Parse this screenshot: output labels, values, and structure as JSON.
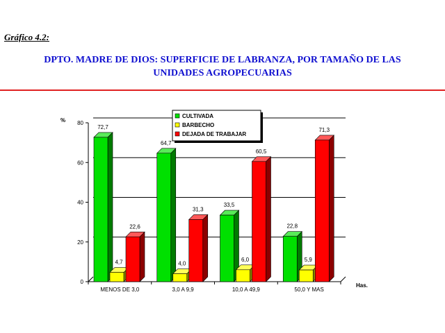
{
  "caption": "Gráfico 4.2:",
  "title_line1": "DPTO. MADRE DE DIOS: SUPERFICIE DE LABRANZA, POR TAMAÑO DE LAS",
  "title_line2": "UNIDADES AGROPECUARIAS",
  "colors": {
    "title": "#1010d0",
    "rule": "#e02020"
  },
  "chart_data": {
    "type": "bar",
    "ylabel": "%",
    "xlabel": "Has.",
    "ylim": [
      0,
      80
    ],
    "yticks": [
      0,
      20,
      40,
      60,
      80
    ],
    "grid": true,
    "legend_position": "top-center",
    "categories": [
      "MENOS DE 3,0",
      "3,0 A 9,9",
      "10,0 A 49,9",
      "50,0 Y MAS"
    ],
    "series": [
      {
        "name": "CULTIVADA",
        "color": "#00e000",
        "values": [
          72.7,
          64.7,
          33.5,
          22.8
        ],
        "labels": [
          "72,7",
          "64,7",
          "33,5",
          "22,8"
        ]
      },
      {
        "name": "BARBECHO",
        "color": "#ffff00",
        "values": [
          4.7,
          4.0,
          6.0,
          5.9
        ],
        "labels": [
          "4,7",
          "4,0",
          "6,0",
          "5,9"
        ]
      },
      {
        "name": "DEJADA DE TRABAJAR",
        "color": "#ff0000",
        "values": [
          22.6,
          31.3,
          60.5,
          71.3
        ],
        "labels": [
          "22,6",
          "31,3",
          "60,5",
          "71,3"
        ]
      }
    ]
  }
}
